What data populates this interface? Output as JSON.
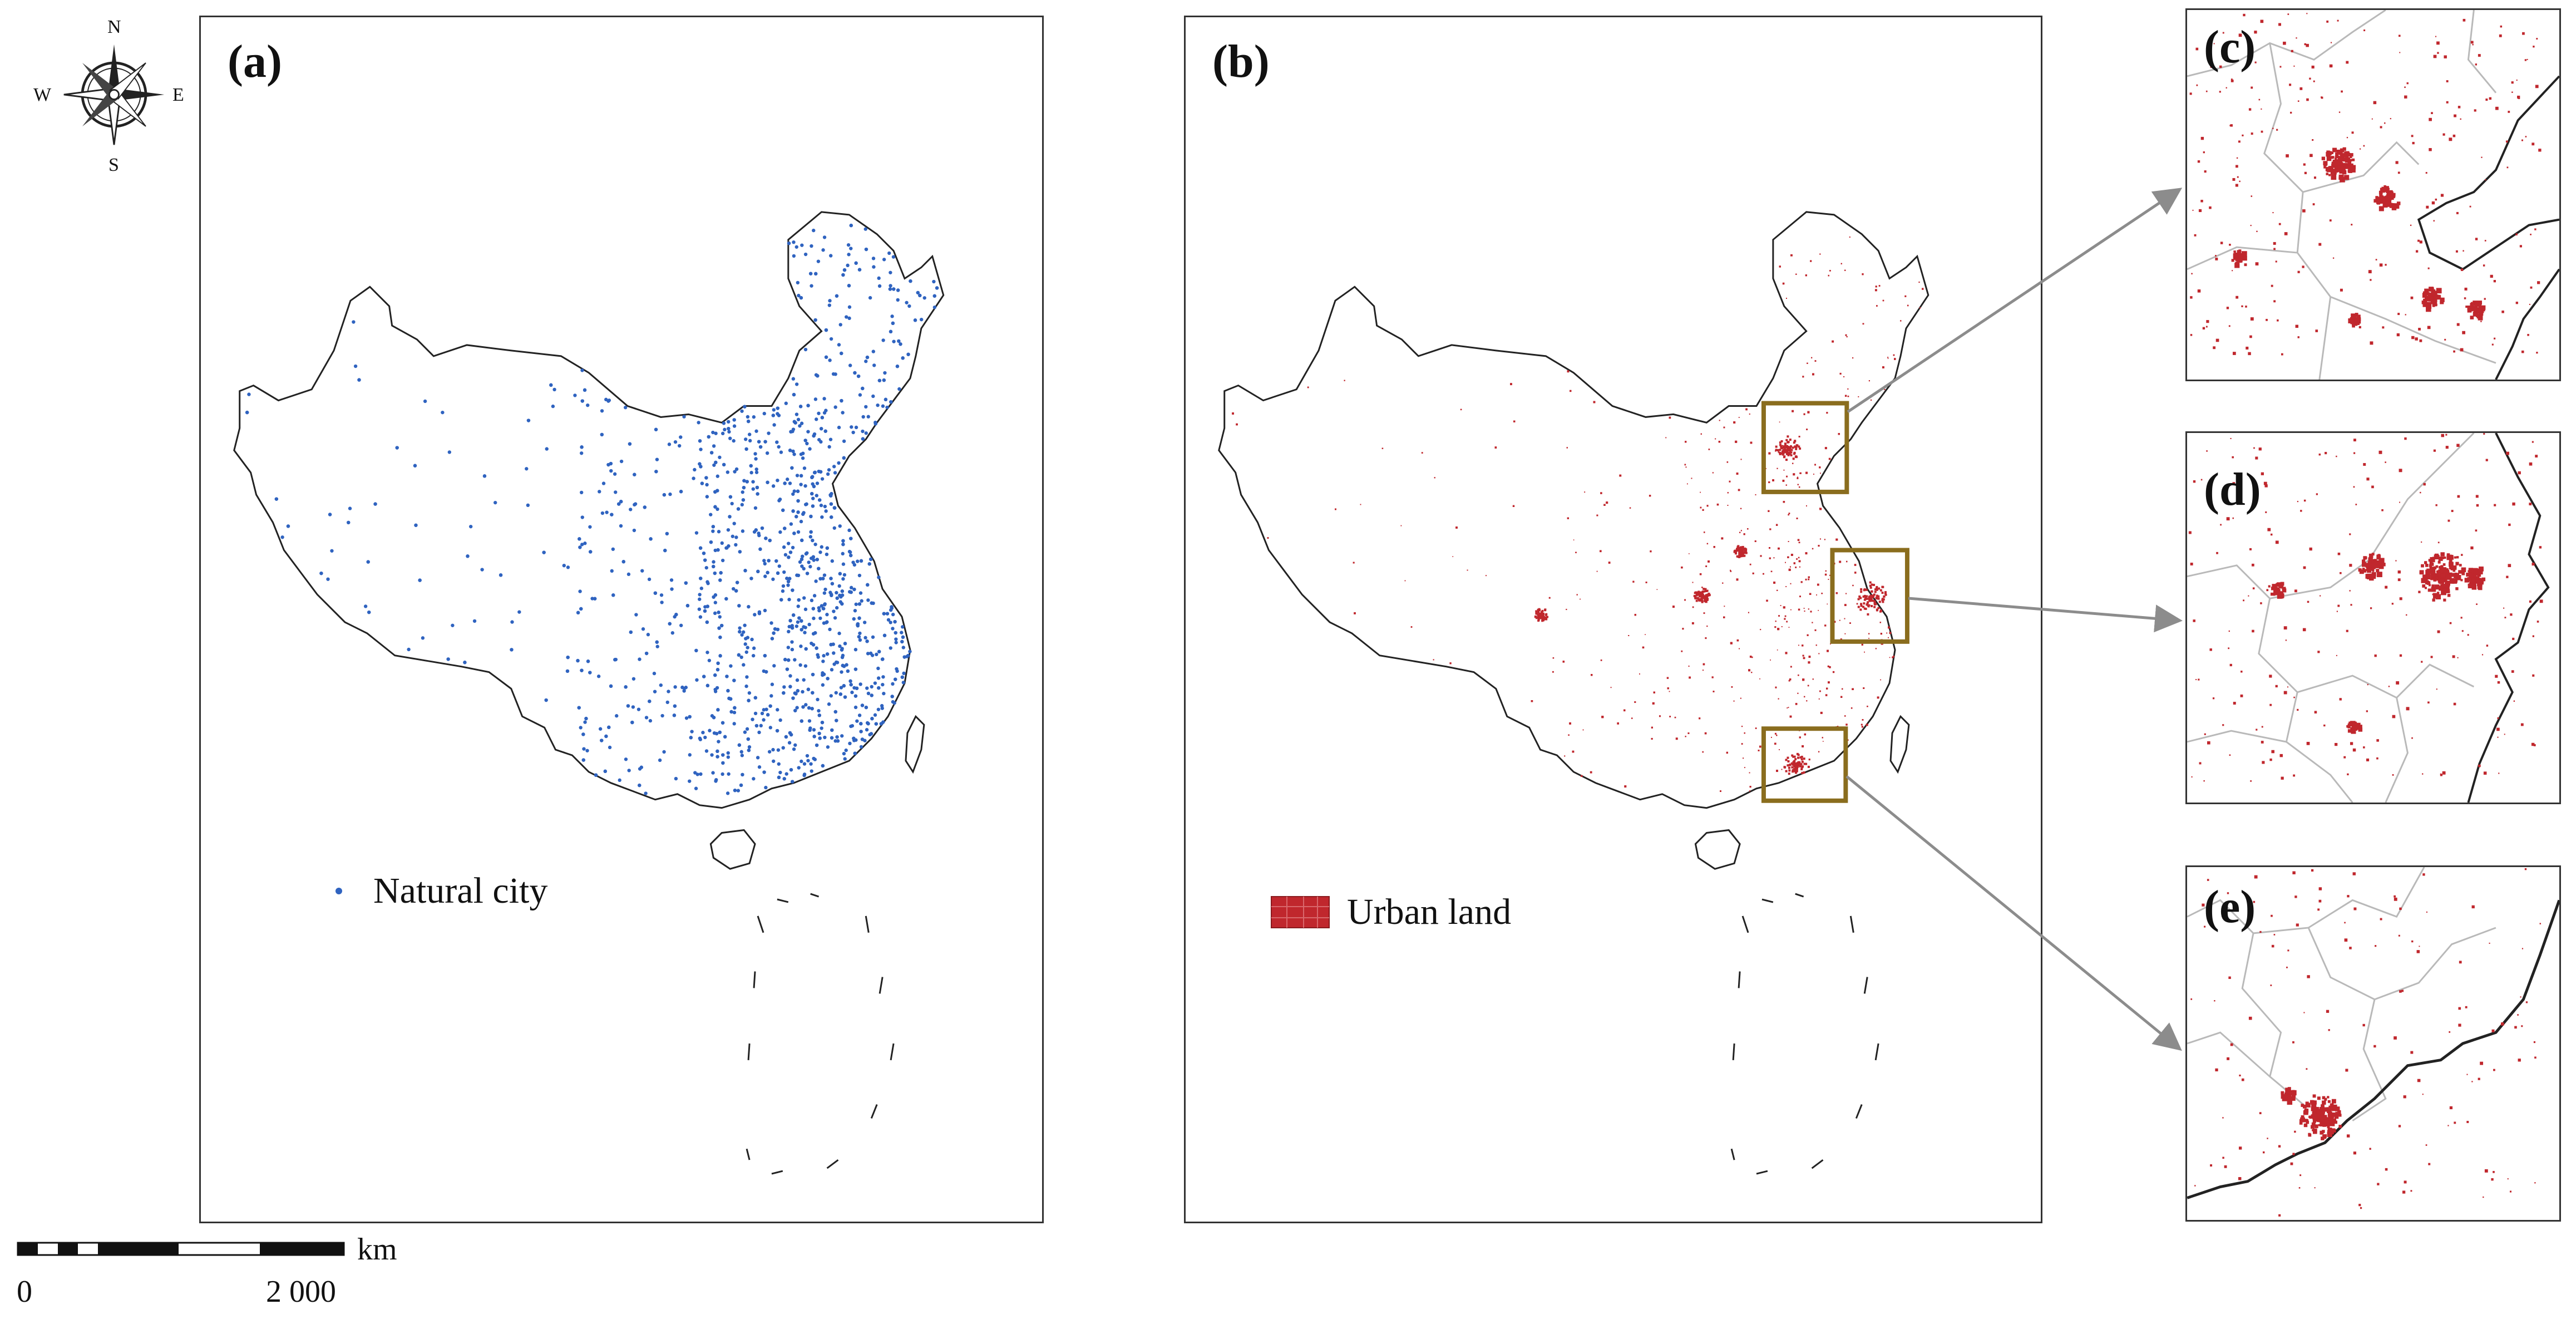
{
  "panels": {
    "a": {
      "label": "(a)",
      "legend": "Natural city",
      "point_color": "#2f63c0"
    },
    "b": {
      "label": "(b)",
      "legend": "Urban land",
      "urban_color": "#c0272d",
      "zoom_box_color": "#8a6d1e"
    },
    "c": {
      "label": "(c)"
    },
    "d": {
      "label": "(d)"
    },
    "e": {
      "label": "(e)"
    }
  },
  "compass": {
    "n": "N",
    "s": "S",
    "e": "E",
    "w": "W"
  },
  "scale_bar": {
    "unit": "km",
    "min_label": "0",
    "max_label": "2 000"
  },
  "colors": {
    "border": "#333333",
    "coast": "#222222",
    "admin": "#b9b9b9",
    "connector": "#8c8c8c"
  }
}
